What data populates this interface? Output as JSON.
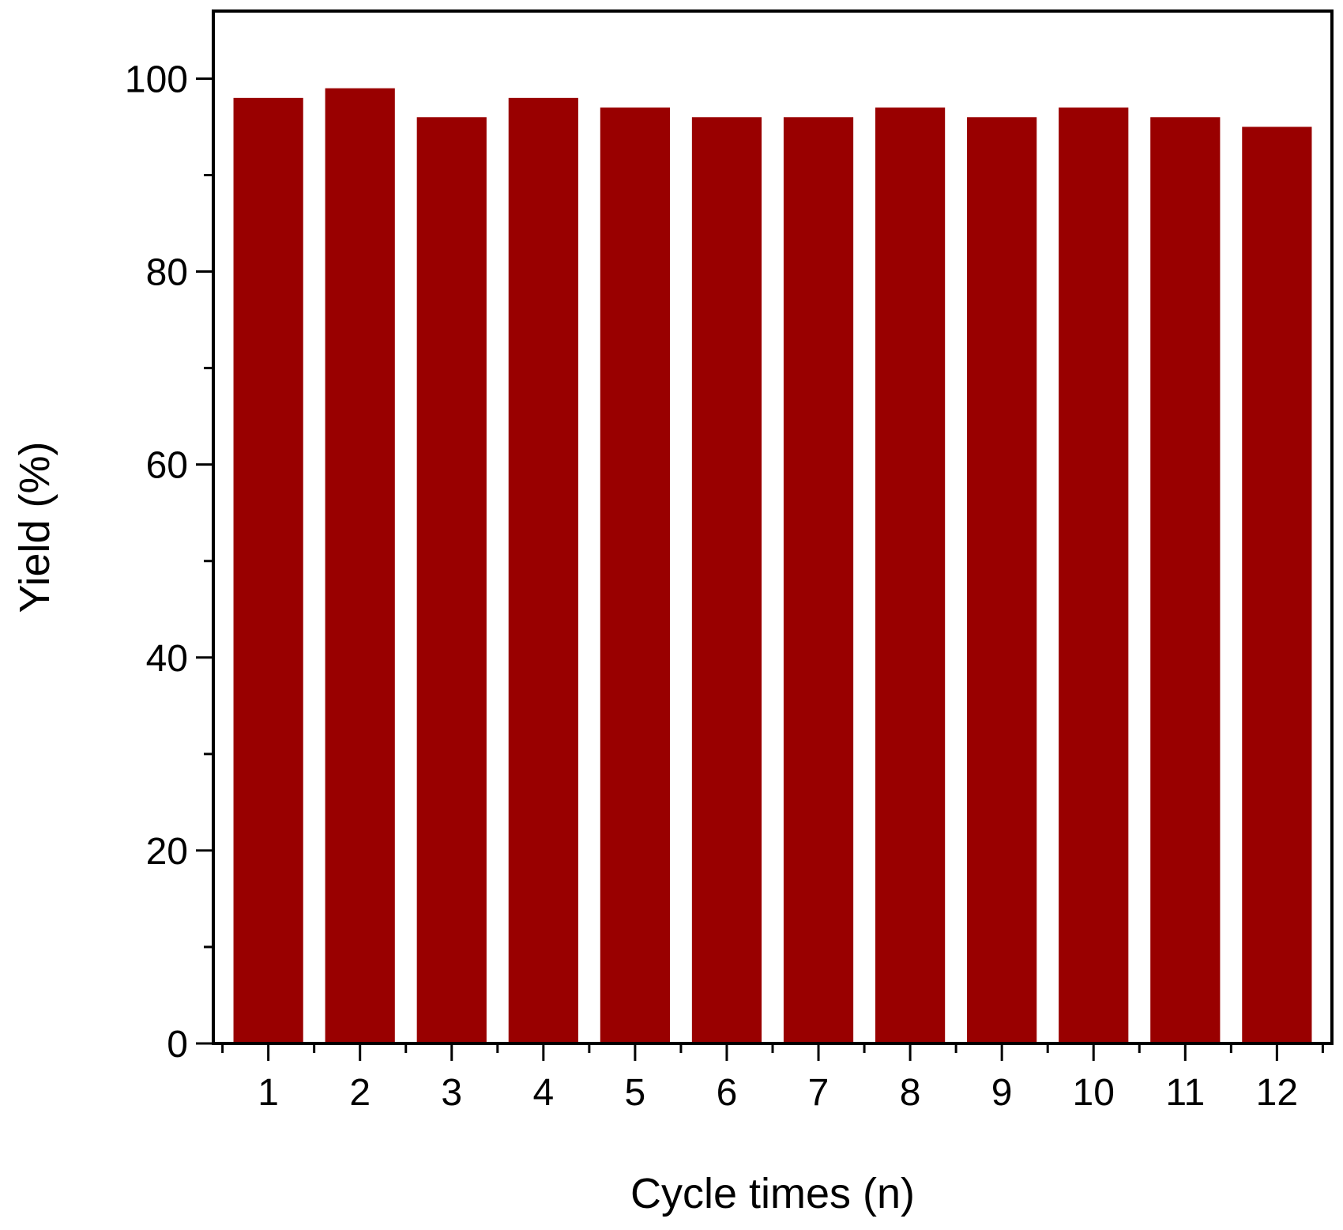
{
  "chart_data": {
    "type": "bar",
    "title": "",
    "xlabel": "Cycle times (n)",
    "ylabel": "Yield (%)",
    "categories": [
      "1",
      "2",
      "3",
      "4",
      "5",
      "6",
      "7",
      "8",
      "9",
      "10",
      "11",
      "12"
    ],
    "values": [
      98,
      99,
      96,
      98,
      97,
      96,
      96,
      97,
      96,
      97,
      96,
      95
    ],
    "ylim": [
      0,
      107
    ],
    "yticks": [
      0,
      20,
      40,
      60,
      80,
      100
    ],
    "yticks_minor": [
      10,
      30,
      50,
      70,
      90
    ],
    "grid": false,
    "legend": "none",
    "bar_color": "#990000"
  }
}
